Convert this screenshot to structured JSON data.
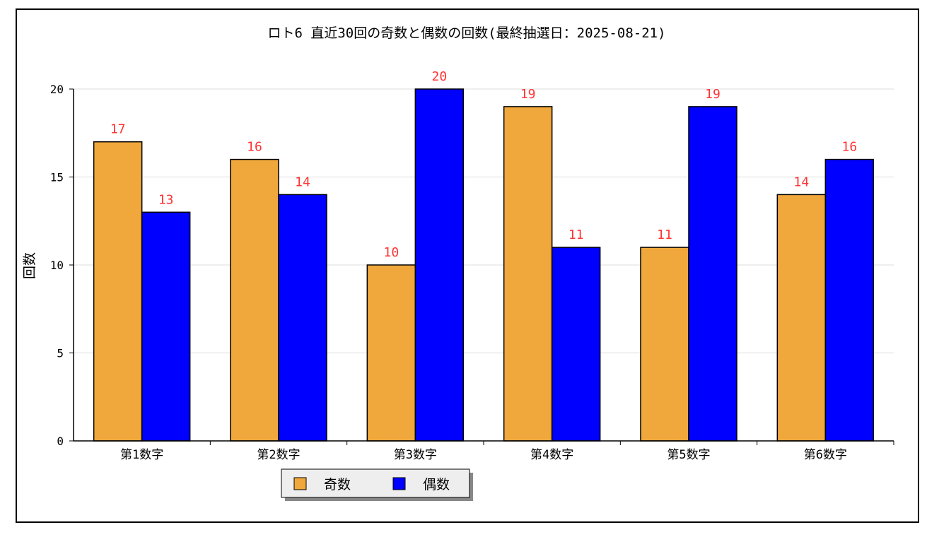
{
  "chart_data": {
    "type": "bar",
    "title": "ロト6 直近30回の奇数と偶数の回数(最終抽選日：2025-08-21)",
    "xlabel": "",
    "ylabel": "回数",
    "categories": [
      "第1数字",
      "第2数字",
      "第3数字",
      "第4数字",
      "第5数字",
      "第6数字"
    ],
    "series": [
      {
        "name": "奇数",
        "values": [
          17,
          16,
          10,
          19,
          11,
          14
        ],
        "color": "#f0a83c"
      },
      {
        "name": "偶数",
        "values": [
          13,
          14,
          20,
          11,
          19,
          16
        ],
        "color": "#0000ff"
      }
    ],
    "ylim": [
      0,
      20
    ],
    "yticks": [
      0,
      5,
      10,
      15,
      20
    ],
    "grid": true,
    "legend_position": "bottom-center",
    "data_label_color": "#ff3333"
  }
}
